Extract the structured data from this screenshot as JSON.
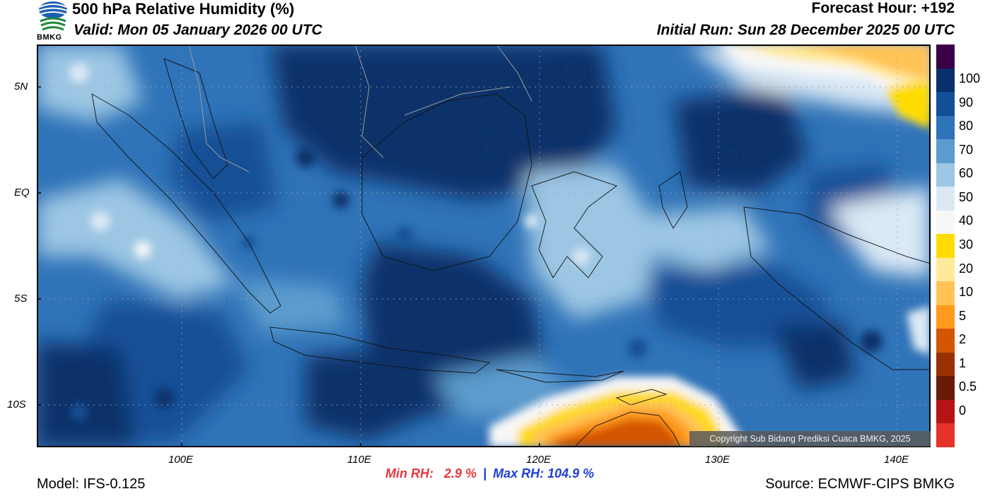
{
  "header": {
    "title": "500 hPa Relative Humidity (%)",
    "valid": "Valid: Mon 05 January 2026 00 UTC",
    "forecast_hour": "Forecast Hour: +192",
    "initial_run": "Initial Run: Sun 28 December 2025 00 UTC"
  },
  "logo": {
    "text": "BMKG"
  },
  "axes": {
    "lat_labels": [
      "5N",
      "EQ",
      "5S",
      "10S"
    ],
    "lon_labels": [
      "100E",
      "110E",
      "120E",
      "130E",
      "140E"
    ]
  },
  "colorbar": {
    "labels": [
      "100",
      "90",
      "80",
      "70",
      "60",
      "50",
      "40",
      "30",
      "20",
      "10",
      "5",
      "2",
      "1",
      "0.5",
      "0"
    ],
    "colors": [
      "#3a0048",
      "#08306b",
      "#124f96",
      "#2f73b8",
      "#5b9bcd",
      "#9cc6e3",
      "#dbe9f5",
      "#f7f7f7",
      "#ffdc00",
      "#ffe99a",
      "#ffc455",
      "#ff9a1e",
      "#d45500",
      "#9a3000",
      "#6a1a08",
      "#b31414",
      "#e6332a"
    ]
  },
  "stats": {
    "min_label": "Min RH:",
    "min_value": "2.9 %",
    "separator": "|",
    "max_label": "Max RH: 104.9 %"
  },
  "footer": {
    "model": "Model: IFS-0.125",
    "source": "Source: ECMWF-CIPS BMKG",
    "copyright": "Copyright Sub Bidang Prediksi Cuaca BMKG, 2025"
  }
}
